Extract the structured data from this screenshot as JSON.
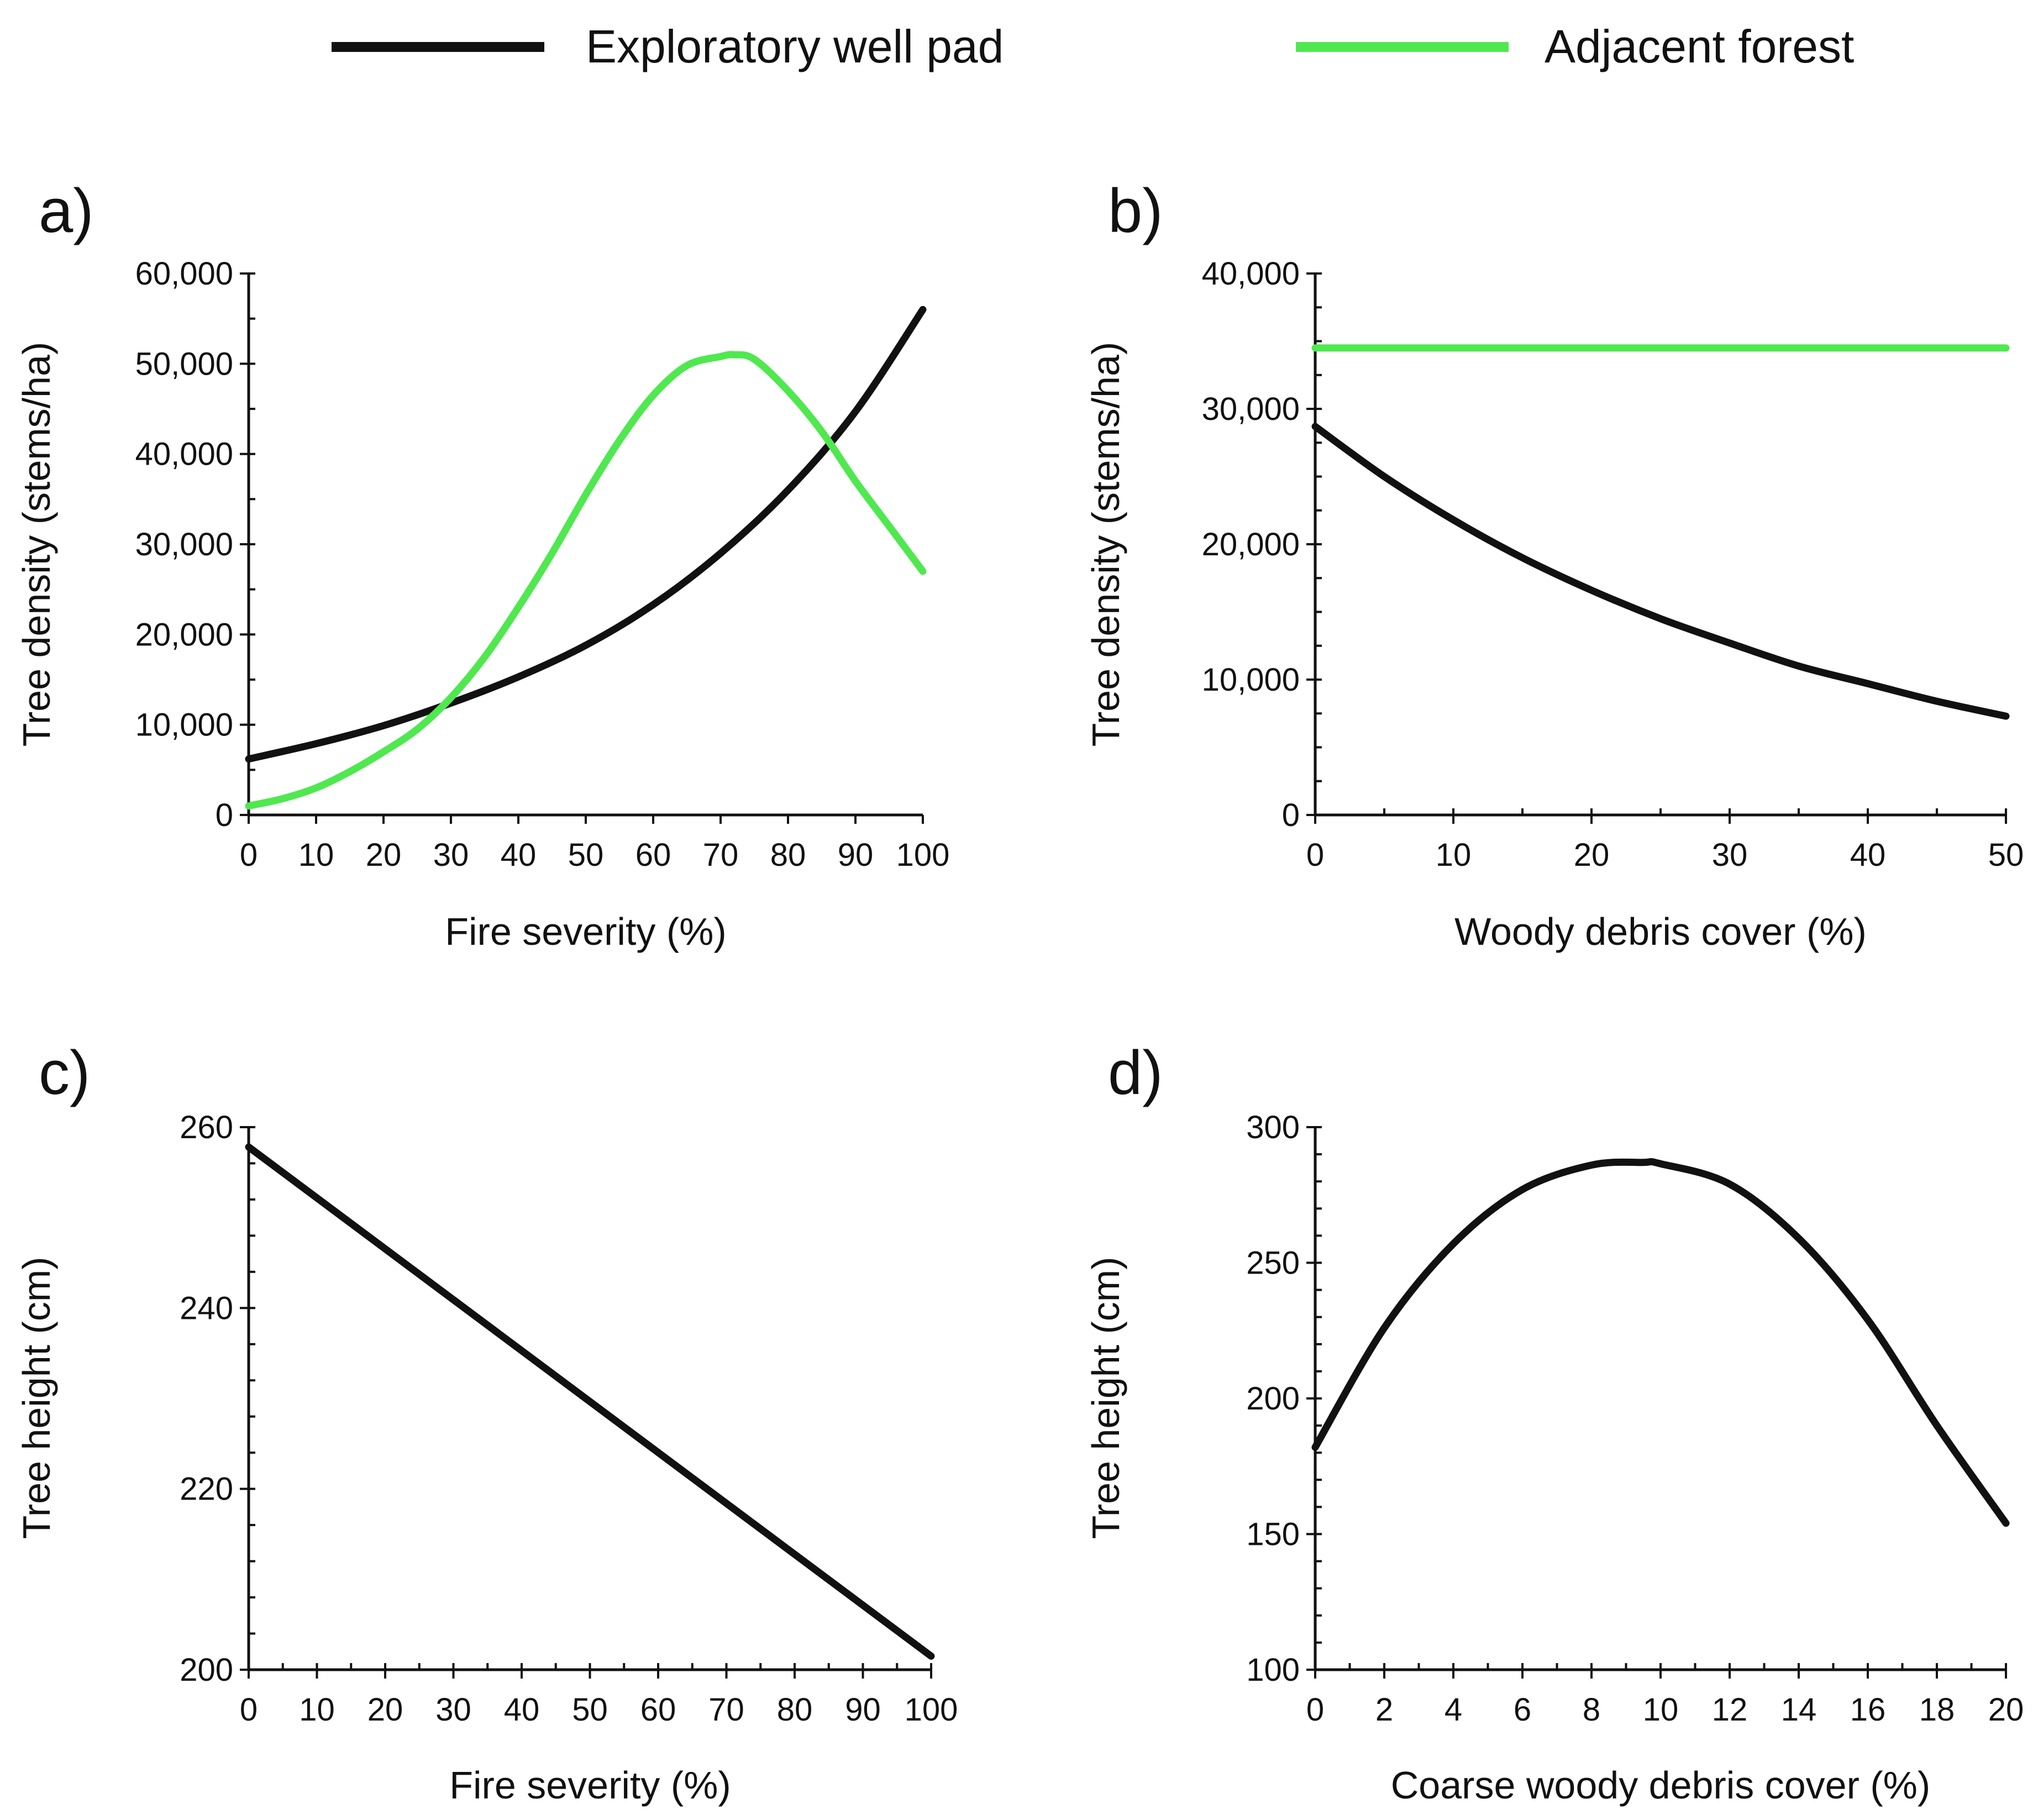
{
  "legend": [
    {
      "name": "Exploratory well pad",
      "color": "#111111"
    },
    {
      "name": "Adjacent forest",
      "color": "#4fe84f"
    }
  ],
  "chart_data": [
    {
      "type": "line",
      "panel_label": "a)",
      "xlabel": "Fire severity (%)",
      "ylabel": "Tree density (stems/ha)",
      "xlim": [
        0,
        100
      ],
      "ylim": [
        0,
        60000
      ],
      "xticks": [
        0,
        10,
        20,
        30,
        40,
        50,
        60,
        70,
        80,
        90,
        100
      ],
      "yticks": [
        0,
        10000,
        20000,
        30000,
        40000,
        50000,
        60000
      ],
      "ytick_labels": [
        "0",
        "10,000",
        "20,000",
        "30,000",
        "40,000",
        "50,000",
        "60,000"
      ],
      "y_minor_step": 5000,
      "series": [
        {
          "name": "Exploratory well pad",
          "color": "#111111",
          "x": [
            0,
            10,
            20,
            30,
            40,
            50,
            60,
            70,
            80,
            90,
            100
          ],
          "y": [
            6200,
            7900,
            9900,
            12400,
            15300,
            18800,
            23300,
            29000,
            36000,
            44700,
            56000
          ]
        },
        {
          "name": "Adjacent forest",
          "color": "#4fe84f",
          "x": [
            0,
            5,
            10,
            15,
            20,
            25,
            30,
            35,
            40,
            45,
            50,
            55,
            60,
            65,
            70,
            72,
            75,
            80,
            85,
            90,
            95,
            100
          ],
          "y": [
            1000,
            1800,
            3000,
            4800,
            7000,
            9500,
            13000,
            17500,
            23000,
            29000,
            35500,
            41500,
            46500,
            49800,
            50800,
            51000,
            50500,
            47000,
            42500,
            37000,
            32000,
            27000
          ]
        }
      ]
    },
    {
      "type": "line",
      "panel_label": "b)",
      "xlabel": "Woody debris cover (%)",
      "ylabel": "Tree density (stems/ha)",
      "xlim": [
        0,
        50
      ],
      "ylim": [
        0,
        40000
      ],
      "xticks": [
        0,
        10,
        20,
        30,
        40,
        50
      ],
      "yticks": [
        0,
        10000,
        20000,
        30000,
        40000
      ],
      "ytick_labels": [
        "0",
        "10,000",
        "20,000",
        "30,000",
        "40,000"
      ],
      "x_minor_step": 5,
      "y_minor_step": 2500,
      "series": [
        {
          "name": "Exploratory well pad",
          "color": "#111111",
          "x": [
            0,
            5,
            10,
            15,
            20,
            25,
            30,
            35,
            40,
            45,
            50
          ],
          "y": [
            28700,
            25000,
            21800,
            19000,
            16600,
            14500,
            12700,
            11000,
            9700,
            8400,
            7300
          ]
        },
        {
          "name": "Adjacent forest",
          "color": "#4fe84f",
          "x": [
            0,
            50
          ],
          "y": [
            34500,
            34500
          ]
        }
      ]
    },
    {
      "type": "line",
      "panel_label": "c)",
      "xlabel": "Fire severity (%)",
      "ylabel": "Tree height (cm)",
      "xlim": [
        0,
        100
      ],
      "ylim": [
        200,
        260
      ],
      "xticks": [
        0,
        10,
        20,
        30,
        40,
        50,
        60,
        70,
        80,
        90,
        100
      ],
      "yticks": [
        200,
        220,
        240,
        260
      ],
      "ytick_labels": [
        "200",
        "220",
        "240",
        "260"
      ],
      "x_minor_step": 5,
      "y_minor_step": 4,
      "series": [
        {
          "name": "Exploratory well pad",
          "color": "#111111",
          "x": [
            0,
            100
          ],
          "y": [
            257.8,
            201.5
          ]
        }
      ]
    },
    {
      "type": "line",
      "panel_label": "d)",
      "xlabel": "Coarse woody debris cover (%)",
      "ylabel": "Tree height (cm)",
      "xlim": [
        0,
        20
      ],
      "ylim": [
        100,
        300
      ],
      "xticks": [
        0,
        2,
        4,
        6,
        8,
        10,
        12,
        14,
        16,
        18,
        20
      ],
      "yticks": [
        100,
        150,
        200,
        250,
        300
      ],
      "ytick_labels": [
        "100",
        "150",
        "200",
        "250",
        "300"
      ],
      "x_minor_step": 1,
      "y_minor_step": 10,
      "series": [
        {
          "name": "Exploratory well pad",
          "color": "#111111",
          "x": [
            0,
            2,
            4,
            6,
            8,
            9.5,
            10,
            12,
            14,
            16,
            18,
            20
          ],
          "y": [
            182,
            226,
            257,
            277,
            286,
            287,
            286.5,
            279,
            259,
            229,
            190,
            154
          ]
        }
      ]
    }
  ]
}
